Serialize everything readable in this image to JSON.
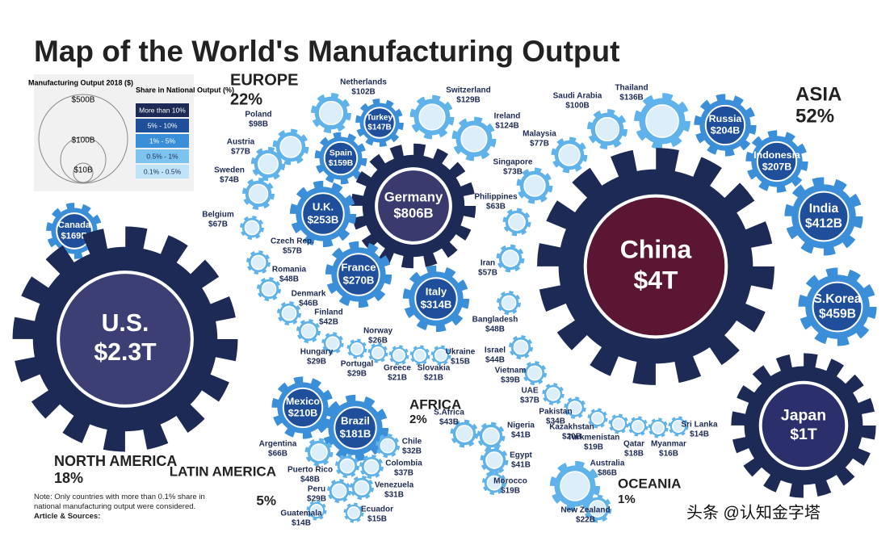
{
  "header": {
    "title": "Map of the World's Manufacturing Output"
  },
  "legend": {
    "size_title": "Manufacturing Output 2018 ($)",
    "sizes": [
      "$500B",
      "$100B",
      "$10B"
    ],
    "share_title": "Share in National Output (%)",
    "shares": [
      "More than 10%",
      "5% - 10%",
      "1% - 5%",
      "0.5% - 1%",
      "0.1% - 0.5%"
    ]
  },
  "regions": [
    {
      "name": "EUROPE",
      "share": "22%"
    },
    {
      "name": "ASIA",
      "share": "52%"
    },
    {
      "name": "NORTH AMERICA",
      "share": "18%"
    },
    {
      "name": "LATIN AMERICA",
      "share": "5%"
    },
    {
      "name": "AFRICA",
      "share": "2%"
    },
    {
      "name": "OCEANIA",
      "share": "1%"
    }
  ],
  "countries": [
    {
      "name": "Netherlands",
      "value": "$102B"
    },
    {
      "name": "Switzerland",
      "value": "$129B"
    },
    {
      "name": "Ireland",
      "value": "$124B"
    },
    {
      "name": "Turkey",
      "value": "$147B"
    },
    {
      "name": "Poland",
      "value": "$98B"
    },
    {
      "name": "Austria",
      "value": "$77B"
    },
    {
      "name": "Spain",
      "value": "$159B"
    },
    {
      "name": "Sweden",
      "value": "$74B"
    },
    {
      "name": "Germany",
      "value": "$806B"
    },
    {
      "name": "U.K.",
      "value": "$253B"
    },
    {
      "name": "Belgium",
      "value": "$67B"
    },
    {
      "name": "Czech Rep.",
      "value": "$57B"
    },
    {
      "name": "France",
      "value": "$270B"
    },
    {
      "name": "Romania",
      "value": "$48B"
    },
    {
      "name": "Italy",
      "value": "$314B"
    },
    {
      "name": "Denmark",
      "value": "$46B"
    },
    {
      "name": "Finland",
      "value": "$42B"
    },
    {
      "name": "Norway",
      "value": "$26B"
    },
    {
      "name": "Hungary",
      "value": "$29B"
    },
    {
      "name": "Portugal",
      "value": "$29B"
    },
    {
      "name": "Greece",
      "value": "$21B"
    },
    {
      "name": "Slovakia",
      "value": "$21B"
    },
    {
      "name": "Ukraine",
      "value": "$15B"
    },
    {
      "name": "Saudi Arabia",
      "value": "$100B"
    },
    {
      "name": "Thailand",
      "value": "$136B"
    },
    {
      "name": "Russia",
      "value": "$204B"
    },
    {
      "name": "Malaysia",
      "value": "$77B"
    },
    {
      "name": "Singapore",
      "value": "$73B"
    },
    {
      "name": "Indonesia",
      "value": "$207B"
    },
    {
      "name": "Philippines",
      "value": "$63B"
    },
    {
      "name": "India",
      "value": "$412B"
    },
    {
      "name": "China",
      "value": "$4T"
    },
    {
      "name": "Iran",
      "value": "$57B"
    },
    {
      "name": "S.Korea",
      "value": "$459B"
    },
    {
      "name": "Bangladesh",
      "value": "$48B"
    },
    {
      "name": "Israel",
      "value": "$44B"
    },
    {
      "name": "Vietnam",
      "value": "$39B"
    },
    {
      "name": "UAE",
      "value": "$37B"
    },
    {
      "name": "Pakistan",
      "value": "$34B"
    },
    {
      "name": "Kazakhstan",
      "value": "$20B"
    },
    {
      "name": "Turkmenistan",
      "value": "$19B"
    },
    {
      "name": "Qatar",
      "value": "$18B"
    },
    {
      "name": "Myanmar",
      "value": "$16B"
    },
    {
      "name": "Sri Lanka",
      "value": "$14B"
    },
    {
      "name": "Japan",
      "value": "$1T"
    },
    {
      "name": "Canada",
      "value": "$169B"
    },
    {
      "name": "U.S.",
      "value": "$2.3T"
    },
    {
      "name": "Mexico",
      "value": "$210B"
    },
    {
      "name": "Brazil",
      "value": "$181B"
    },
    {
      "name": "Argentina",
      "value": "$66B"
    },
    {
      "name": "Chile",
      "value": "$32B"
    },
    {
      "name": "Colombia",
      "value": "$37B"
    },
    {
      "name": "Puerto Rico",
      "value": "$48B"
    },
    {
      "name": "Peru",
      "value": "$29B"
    },
    {
      "name": "Venezuela",
      "value": "$31B"
    },
    {
      "name": "Guatemala",
      "value": "$14B"
    },
    {
      "name": "Ecuador",
      "value": "$15B"
    },
    {
      "name": "S.Africa",
      "value": "$43B"
    },
    {
      "name": "Nigeria",
      "value": "$41B"
    },
    {
      "name": "Egypt",
      "value": "$41B"
    },
    {
      "name": "Morocco",
      "value": "$19B"
    },
    {
      "name": "Australia",
      "value": "$86B"
    },
    {
      "name": "New Zealand",
      "value": "$22B"
    }
  ],
  "note": {
    "text": "Note: Only countries with more than 0.1% share in national manufacturing output were considered.",
    "sources": "Article & Sources:"
  },
  "watermark": "头条 @认知金字塔"
}
